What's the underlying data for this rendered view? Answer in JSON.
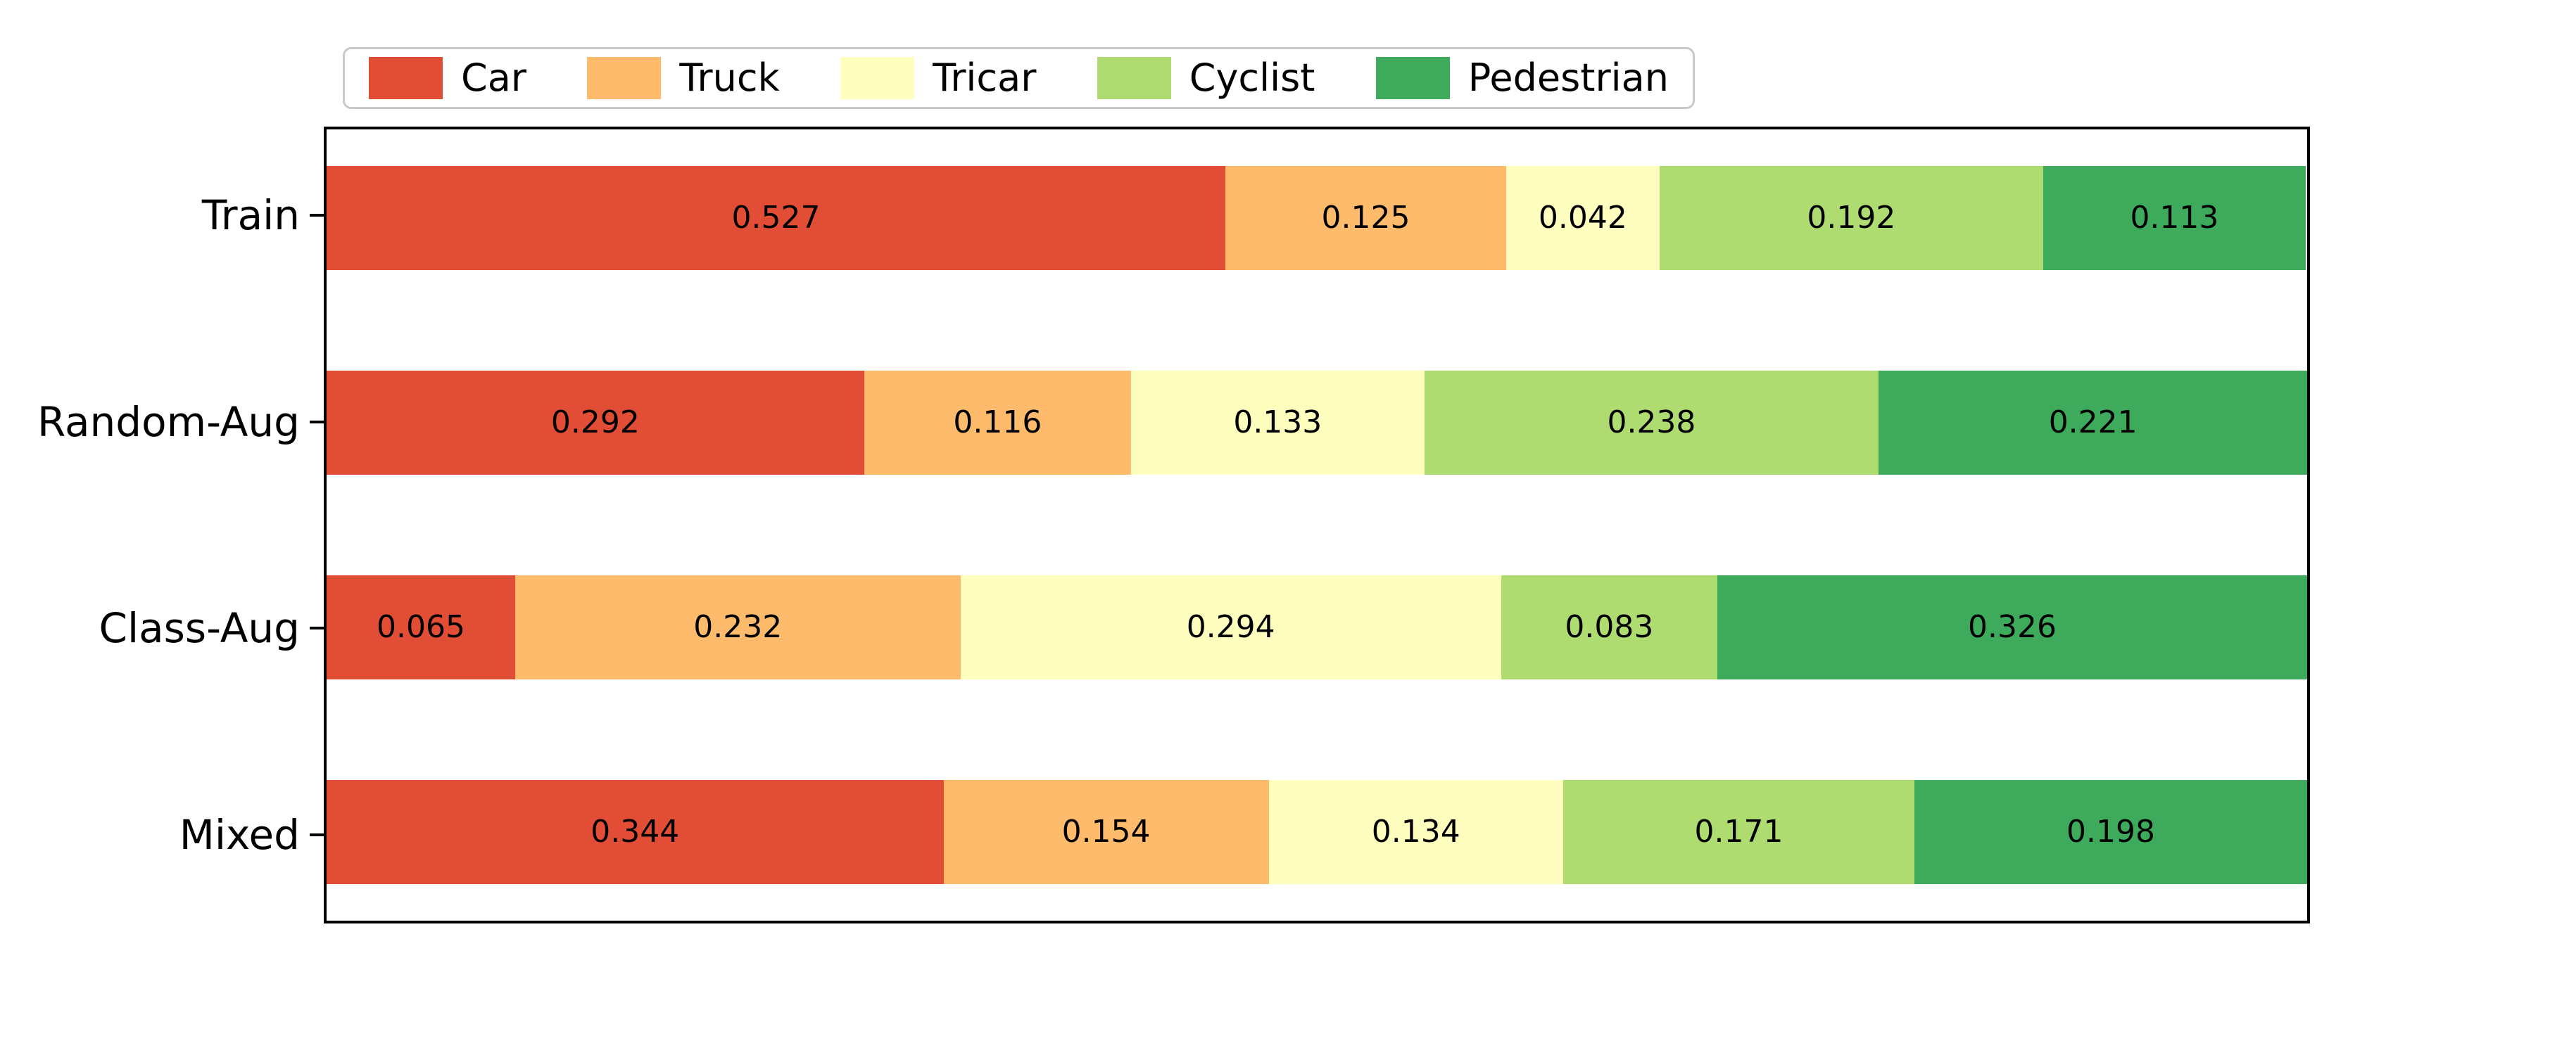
{
  "figure": {
    "background_color": "#ffffff",
    "axes_border_color": "#000000",
    "legend_border_color": "#c9c9c9",
    "value_label_color": "#000000"
  },
  "chart_data": {
    "type": "bar",
    "orientation": "horizontal-stacked",
    "title": "",
    "xlabel": "",
    "ylabel": "",
    "xlim": [
      0,
      1
    ],
    "grid": false,
    "legend_position": "top",
    "value_labels_visible": true,
    "value_label_format": "3-decimals",
    "categories": [
      "Train",
      "Random-Aug",
      "Class-Aug",
      "Mixed"
    ],
    "series": [
      {
        "name": "Car",
        "color": "#e24d35",
        "values": [
          0.527,
          0.292,
          0.065,
          0.344
        ]
      },
      {
        "name": "Truck",
        "color": "#fdbb6b",
        "values": [
          0.125,
          0.116,
          0.232,
          0.154
        ]
      },
      {
        "name": "Tricar",
        "color": "#feffbe",
        "values": [
          0.042,
          0.133,
          0.294,
          0.134
        ]
      },
      {
        "name": "Cyclist",
        "color": "#afdc70",
        "values": [
          0.192,
          0.238,
          0.083,
          0.171
        ]
      },
      {
        "name": "Pedestrian",
        "color": "#3dab5b",
        "values": [
          0.113,
          0.221,
          0.326,
          0.198
        ]
      }
    ]
  }
}
